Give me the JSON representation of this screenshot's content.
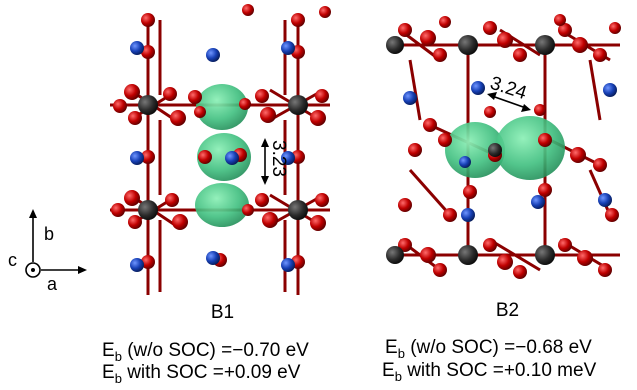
{
  "axes": {
    "b": "b",
    "c": "c",
    "a": "a"
  },
  "panels": [
    {
      "label": "B1",
      "distance": "3.23",
      "eb_wo": {
        "prefix": "E",
        "sub": "b",
        "text": " (w/o SOC) =−0.70 eV"
      },
      "eb_with": {
        "prefix": "E",
        "sub": "b",
        "text": " with SOC =+0.09 eV"
      }
    },
    {
      "label": "B2",
      "distance": "3.24",
      "eb_wo": {
        "prefix": "E",
        "sub": "b",
        "text": " (w/o SOC) =−0.68 eV"
      },
      "eb_with": {
        "prefix": "E",
        "sub": "b",
        "text": " with SOC =+0.10 meV"
      }
    }
  ],
  "colors": {
    "bond": "#8b0000",
    "metal_atom": "#2b2b2b",
    "oxygen_atom": "#c00000",
    "blue_atom": "#0d3a9e",
    "isosurface": "#3fbf7f"
  }
}
